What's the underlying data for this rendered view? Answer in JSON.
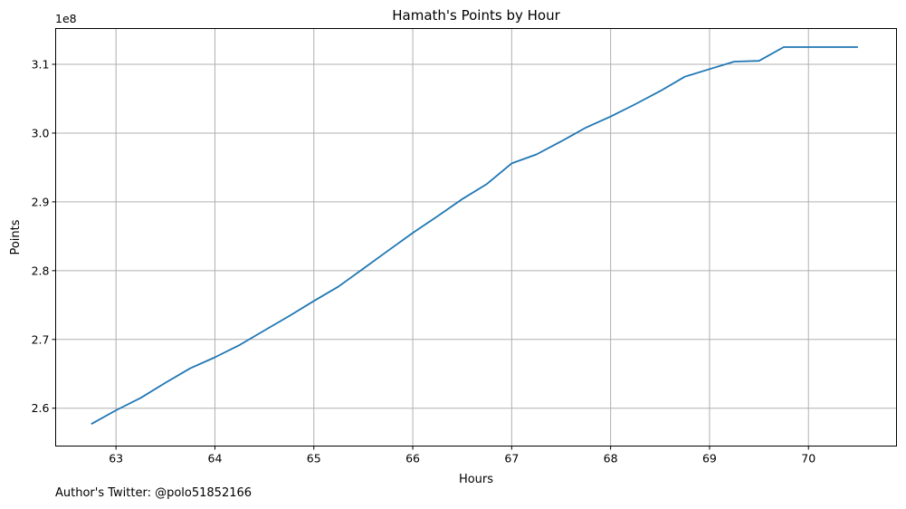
{
  "footer_text": "Author's Twitter: @polo51852166",
  "chart_data": {
    "type": "line",
    "title": "Hamath's Points by Hour",
    "xlabel": "Hours",
    "ylabel": "Points",
    "y_offset_label": "1e8",
    "y_scale": 100000000,
    "xlim": [
      62.39,
      70.89
    ],
    "ylim": [
      254500000,
      315200000
    ],
    "x_ticks": [
      63,
      64,
      65,
      66,
      67,
      68,
      69,
      70
    ],
    "y_ticks": [
      2.6,
      2.7,
      2.8,
      2.9,
      3.0,
      3.1
    ],
    "grid": true,
    "line_color": "#1f77b4",
    "series": [
      {
        "x": [
          62.75,
          63.0,
          63.25,
          63.5,
          63.75,
          64.0,
          64.25,
          64.5,
          64.75,
          65.0,
          65.25,
          65.5,
          65.75,
          66.0,
          66.25,
          66.5,
          66.75,
          67.0,
          67.25,
          67.5,
          67.75,
          68.0,
          68.25,
          68.5,
          68.75,
          69.0,
          69.25,
          69.5,
          69.75,
          70.0,
          70.25,
          70.5
        ],
        "values": [
          257700000,
          259700000,
          261500000,
          263700000,
          265800000,
          267400000,
          269200000,
          271300000,
          273400000,
          275600000,
          277700000,
          280300000,
          282900000,
          285500000,
          287900000,
          290400000,
          292600000,
          295600000,
          296900000,
          298800000,
          300800000,
          302400000,
          304200000,
          306100000,
          308200000,
          309300000,
          310400000,
          310500000,
          312500000,
          312500000,
          312500000,
          312500000
        ]
      }
    ]
  }
}
